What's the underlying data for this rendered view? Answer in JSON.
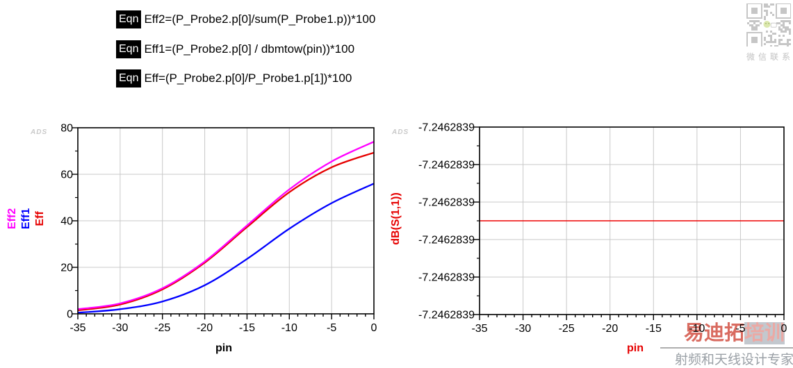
{
  "equations": {
    "badge": "Eqn",
    "items": [
      "Eff2=(P_Probe2.p[0]/sum(P_Probe1.p))*100",
      "Eff1=(P_Probe2.p[0] / dbmtow(pin))*100",
      "Eff=(P_Probe2.p[0]/P_Probe1.p[1])*100"
    ]
  },
  "watermarks": {
    "ads_logo": "ADS",
    "qr_caption": "微信联系",
    "brand_title_main": "易迪拓",
    "brand_title_tail": "培训",
    "brand_subtitle": "射频和天线设计专家"
  },
  "colors": {
    "trace_magenta": "#FF00FF",
    "trace_blue": "#0000FF",
    "trace_red": "#E60000",
    "grid": "#C8C8C8",
    "axis": "#000000"
  },
  "chart_data": [
    {
      "type": "line",
      "title": "",
      "xlabel": "pin",
      "xlabel_color": "#000000",
      "xlim": [
        -35,
        0
      ],
      "ylim": [
        0,
        80
      ],
      "xticks": [
        -35,
        -30,
        -25,
        -20,
        -15,
        -10,
        -5,
        0
      ],
      "yticks": [
        0,
        20,
        40,
        60,
        80
      ],
      "x_minor_step": 1,
      "y_minor_step": 10,
      "grid": true,
      "legend_position": "left-axis-rotated",
      "axis_series_labels": [
        {
          "name": "Eff2",
          "color": "#FF00FF"
        },
        {
          "name": "Eff1",
          "color": "#0000FF"
        },
        {
          "name": "Eff",
          "color": "#E60000"
        }
      ],
      "x": [
        -35,
        -30,
        -25,
        -20,
        -15,
        -10,
        -5,
        0
      ],
      "series": [
        {
          "name": "Eff2",
          "color": "#FF00FF",
          "values": [
            2.0,
            4.5,
            11.0,
            22.5,
            38.0,
            53.5,
            65.5,
            74.0
          ]
        },
        {
          "name": "Eff1",
          "color": "#0000FF",
          "values": [
            0.5,
            2.0,
            5.3,
            12.3,
            23.6,
            36.6,
            47.6,
            56.0
          ]
        },
        {
          "name": "Eff",
          "color": "#E60000",
          "values": [
            1.5,
            4.0,
            10.5,
            22.0,
            37.3,
            52.3,
            63.0,
            69.3
          ]
        }
      ]
    },
    {
      "type": "line",
      "title": "",
      "xlabel": "pin",
      "xlabel_color": "#E60000",
      "ylabel": "dB(S(1,1))",
      "ylabel_color": "#E60000",
      "xlim": [
        -35,
        0
      ],
      "xticks": [
        -35,
        -30,
        -25,
        -20,
        -15,
        -10,
        -5,
        0
      ],
      "x_minor_step": 1,
      "ytick_labels": [
        "-7.2462839",
        "-7.2462839",
        "-7.2462839",
        "-7.2462839",
        "-7.2462839",
        "-7.2462839"
      ],
      "grid": true,
      "x": [
        -35,
        0
      ],
      "series": [
        {
          "name": "dB(S(1,1))",
          "color": "#EE0000",
          "values": [
            -7.2462839,
            -7.2462839
          ]
        }
      ],
      "display_fraction": 0.5
    }
  ]
}
